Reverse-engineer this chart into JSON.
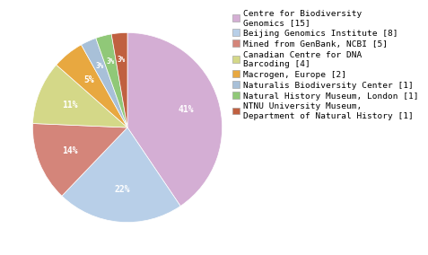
{
  "labels": [
    "Centre for Biodiversity\nGenomics [15]",
    "Beijing Genomics Institute [8]",
    "Mined from GenBank, NCBI [5]",
    "Canadian Centre for DNA\nBarcoding [4]",
    "Macrogen, Europe [2]",
    "Naturalis Biodiversity Center [1]",
    "Natural History Museum, London [1]",
    "NTNU University Museum,\nDepartment of Natural History [1]"
  ],
  "values": [
    15,
    8,
    5,
    4,
    2,
    1,
    1,
    1
  ],
  "colors": [
    "#d4aed4",
    "#b8cfe8",
    "#d4857a",
    "#d4d888",
    "#e8a840",
    "#a8c0d8",
    "#90c878",
    "#c06040"
  ],
  "startangle": 90,
  "background_color": "#ffffff",
  "text_color": "#ffffff",
  "fontsize_pct": 7,
  "fontsize_legend": 6.8
}
